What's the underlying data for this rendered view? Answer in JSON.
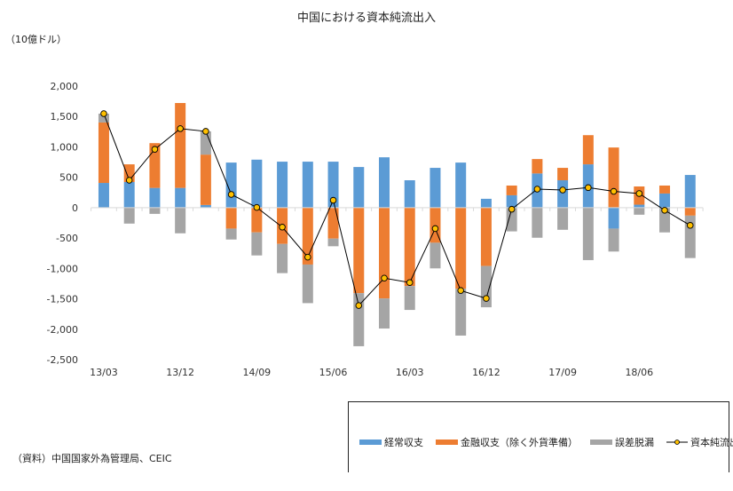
{
  "chart_data": {
    "type": "bar",
    "stacked": true,
    "title": "中国における資本純流出入",
    "ylabel": "（10億ドル）",
    "ylim": [
      -2500,
      2000
    ],
    "yticks": [
      2000,
      1500,
      1000,
      500,
      0,
      -500,
      -1000,
      -1500,
      -2000,
      -2500
    ],
    "ytick_labels": [
      "2,000",
      "1,500",
      "1,000",
      "500",
      "0",
      "-500",
      "-1,000",
      "-1,500",
      "-2,000",
      "-2,500"
    ],
    "x_tick_labels": [
      "13/03",
      "13/12",
      "14/09",
      "15/06",
      "16/03",
      "16/12",
      "17/09",
      "18/06"
    ],
    "x_tick_every": 3,
    "n_periods": 24,
    "grid": false,
    "legend_position": "bottom-right",
    "series": [
      {
        "name": "経常収支",
        "type": "bar",
        "color": "#5B9BD5",
        "values": [
          407,
          422,
          325,
          325,
          44,
          742,
          790,
          757,
          757,
          757,
          669,
          829,
          451,
          655,
          742,
          146,
          204,
          563,
          451,
          713,
          -344,
          49,
          233,
          538
        ]
      },
      {
        "name": "金融収支（除く外貨準備）",
        "type": "bar",
        "color": "#ED7D31",
        "values": [
          995,
          291,
          737,
          1397,
          829,
          -344,
          -407,
          -597,
          -936,
          -509,
          -1407,
          -1494,
          -1290,
          -577,
          -1334,
          -960,
          160,
          237,
          204,
          480,
          990,
          300,
          131,
          -131
        ]
      },
      {
        "name": "誤差脱漏",
        "type": "bar",
        "color": "#A5A5A5",
        "values": [
          145,
          -262,
          -102,
          -422,
          383,
          -180,
          -379,
          -480,
          -635,
          -126,
          -873,
          -495,
          -393,
          -422,
          -771,
          -679,
          -390,
          -495,
          -364,
          -863,
          -378,
          -116,
          -407,
          -698
        ]
      },
      {
        "name": "資本純流出入",
        "type": "line",
        "color": "#000000",
        "marker_color": "#FFC000",
        "values": [
          1547,
          451,
          960,
          1300,
          1256,
          218,
          4,
          -320,
          -814,
          122,
          -1611,
          -1160,
          -1232,
          -344,
          -1363,
          -1493,
          -26,
          305,
          291,
          330,
          268,
          233,
          -43,
          -291
        ]
      }
    ]
  },
  "source_note": "（資料）中国国家外為管理局、CEIC"
}
